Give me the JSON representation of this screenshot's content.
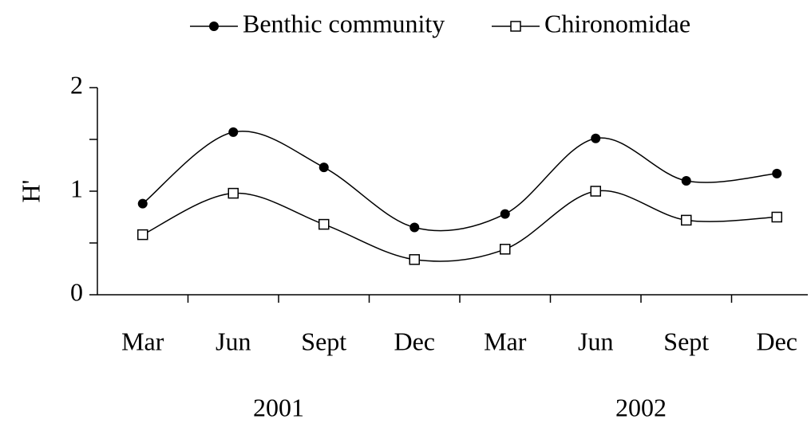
{
  "chart_data": {
    "type": "line",
    "categories": [
      "Mar",
      "Jun",
      "Sept",
      "Dec",
      "Mar",
      "Jun",
      "Sept",
      "Dec"
    ],
    "x_groups": [
      "2001",
      "2002"
    ],
    "ylabel": "H'",
    "ylim": [
      0,
      2
    ],
    "yticks": [
      0,
      1,
      2
    ],
    "yminorticks": [
      0.5,
      1.5
    ],
    "smooth": true,
    "series": [
      {
        "name": "Benthic community",
        "color": "#000000",
        "marker": "filled-circle",
        "values": [
          0.88,
          1.57,
          1.23,
          0.65,
          0.78,
          1.51,
          1.1,
          1.17
        ]
      },
      {
        "name": "Chironomidae",
        "color": "#000000",
        "marker": "open-square",
        "values": [
          0.58,
          0.98,
          0.68,
          0.34,
          0.44,
          1.0,
          0.72,
          0.75
        ]
      }
    ]
  }
}
